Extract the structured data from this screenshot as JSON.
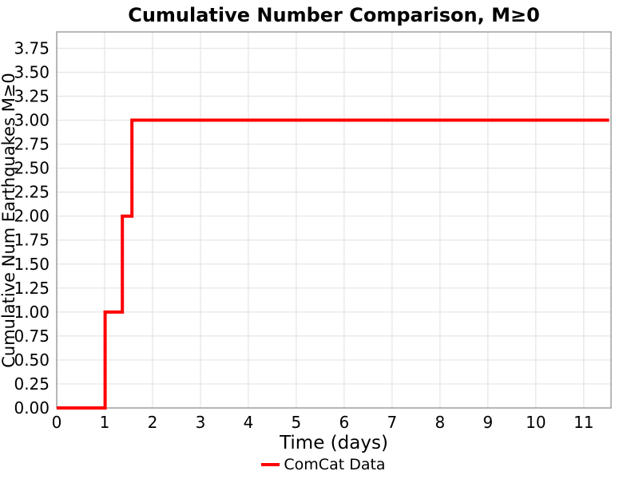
{
  "chart_data": {
    "type": "line",
    "draw_style": "steps-post",
    "title": "Cumulative Number Comparison, M≥0",
    "xlabel": "Time (days)",
    "ylabel": "Cumulative Num Earthquakes M≥0",
    "xlim": [
      0,
      11.57
    ],
    "ylim": [
      0,
      3.92
    ],
    "x_tick_values": [
      0,
      1,
      2,
      3,
      4,
      5,
      6,
      7,
      8,
      9,
      10,
      11
    ],
    "x_tick_labels": [
      "0",
      "1",
      "2",
      "3",
      "4",
      "5",
      "6",
      "7",
      "8",
      "9",
      "10",
      "11"
    ],
    "y_tick_values": [
      0,
      0.25,
      0.5,
      0.75,
      1,
      1.25,
      1.5,
      1.75,
      2,
      2.25,
      2.5,
      2.75,
      3,
      3.25,
      3.5,
      3.75
    ],
    "y_tick_labels": [
      "0.00",
      "0.25",
      "0.50",
      "0.75",
      "1.00",
      "1.25",
      "1.50",
      "1.75",
      "2.00",
      "2.25",
      "2.50",
      "2.75",
      "3.00",
      "3.25",
      "3.50",
      "3.75"
    ],
    "grid": true,
    "grid_color": "#e4e4e4",
    "axis_color": "#a6a6a6",
    "legend": {
      "position": "bottom-center",
      "entries": [
        {
          "label": "ComCat Data",
          "color": "#ff0000"
        }
      ]
    },
    "series": [
      {
        "name": "ComCat Data",
        "color": "#ff0000",
        "line_width": 4,
        "draw_style": "steps-post",
        "x": [
          0,
          1.01,
          1.37,
          1.57,
          11.53
        ],
        "y": [
          0,
          1,
          2,
          3,
          3
        ],
        "description": "Cumulative count steps: reaches 1 at ~1.0 days, 2 at ~1.37 days, 3 at ~1.57 days, constant at 3 until ~11.5 days"
      }
    ]
  }
}
